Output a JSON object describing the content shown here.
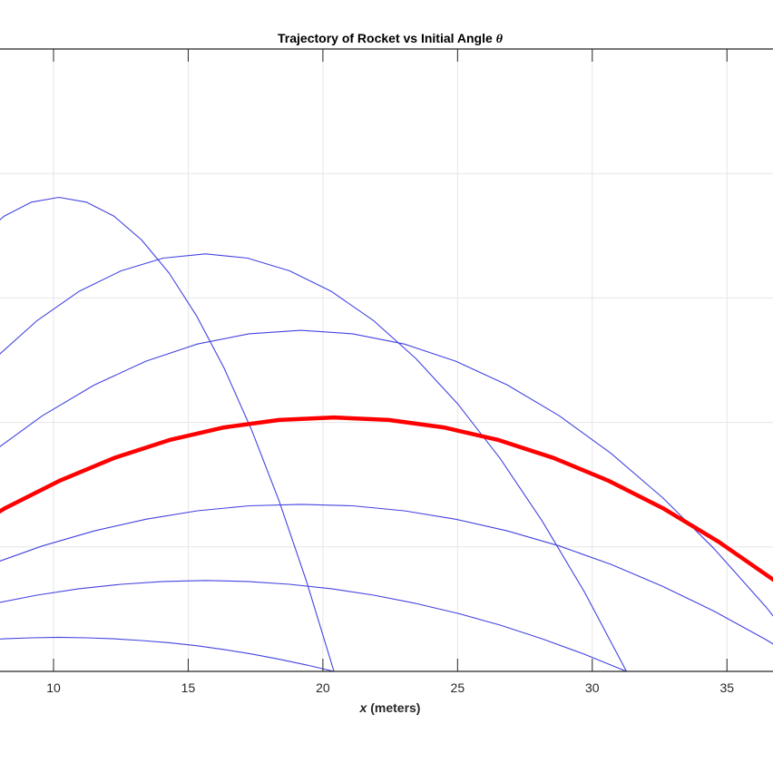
{
  "chart_data": {
    "type": "line",
    "title": "Trajectory of Rocket vs Initial Angle θ",
    "title_parts": {
      "text": "Trajectory of Rocket vs Initial Angle ",
      "symbol": "θ"
    },
    "xlabel": "x (meters)",
    "xlabel_parts": {
      "var": "x",
      "rest": " (meters)"
    },
    "xlim_visible": [
      8,
      36.7
    ],
    "ylim": [
      0,
      25
    ],
    "x_ticks": [
      10,
      15,
      20,
      25,
      30,
      35
    ],
    "x_tick_labels": [
      "10",
      "15",
      "20",
      "25",
      "30",
      "35"
    ],
    "y_grid": [
      0,
      5,
      10,
      15,
      20,
      25
    ],
    "grid": true,
    "colors": {
      "series": "#4343e0",
      "highlight": "#ff0000",
      "axis": "#262626",
      "grid": "#e6e6e6"
    },
    "series": [
      {
        "highlight": false,
        "x": [
          0,
          1.02,
          2.04,
          3.06,
          4.08,
          5.1,
          6.12,
          7.14,
          8.16,
          9.18,
          10.2,
          11.22,
          12.25,
          13.27,
          14.29,
          15.31,
          16.33,
          17.35,
          18.37,
          19.39,
          20.41
        ],
        "y": [
          0,
          0.26,
          0.49,
          0.7,
          0.88,
          1.03,
          1.15,
          1.24,
          1.31,
          1.35,
          1.37,
          1.35,
          1.31,
          1.24,
          1.15,
          1.03,
          0.88,
          0.7,
          0.49,
          0.26,
          0
        ]
      },
      {
        "highlight": false,
        "x": [
          0,
          1.56,
          3.13,
          4.69,
          6.25,
          7.82,
          9.38,
          10.94,
          12.51,
          14.07,
          15.64,
          17.2,
          18.76,
          20.32,
          21.89,
          23.45,
          25.02,
          26.58,
          28.14,
          29.71,
          31.27
        ],
        "y": [
          0,
          0.69,
          1.31,
          1.86,
          2.33,
          2.73,
          3.06,
          3.32,
          3.5,
          3.61,
          3.65,
          3.61,
          3.5,
          3.32,
          3.06,
          2.73,
          2.33,
          1.86,
          1.31,
          0.69,
          0
        ]
      },
      {
        "highlight": false,
        "x": [
          0,
          1.92,
          3.84,
          5.75,
          7.67,
          9.59,
          11.51,
          13.43,
          15.34,
          17.26,
          19.18,
          21.1,
          23.02,
          24.93,
          26.85,
          28.77,
          30.69,
          32.61,
          34.52,
          36.44,
          38.36
        ],
        "y": [
          0,
          1.28,
          2.42,
          3.42,
          4.3,
          5.04,
          5.64,
          6.11,
          6.45,
          6.65,
          6.71,
          6.65,
          6.45,
          6.11,
          5.64,
          5.04,
          4.3,
          3.42,
          2.42,
          1.28,
          0
        ]
      },
      {
        "highlight": true,
        "x": [
          0,
          2.04,
          4.08,
          6.12,
          8.16,
          10.21,
          12.25,
          14.29,
          16.33,
          18.37,
          20.41,
          22.45,
          24.49,
          26.53,
          28.57,
          30.62,
          32.66,
          34.7,
          36.74,
          38.78,
          40.82
        ],
        "y": [
          0,
          1.94,
          3.67,
          5.2,
          6.53,
          7.65,
          8.57,
          9.29,
          9.8,
          10.1,
          10.2,
          10.1,
          9.8,
          9.29,
          8.57,
          7.65,
          6.53,
          5.2,
          3.67,
          1.94,
          0
        ]
      },
      {
        "highlight": false,
        "x": [
          0,
          1.92,
          3.84,
          5.75,
          7.67,
          9.59,
          11.51,
          13.43,
          15.34,
          17.26,
          19.18,
          21.1,
          23.02,
          24.93,
          26.85,
          28.77,
          30.69,
          32.61,
          34.52,
          36.44,
          38.36
        ],
        "y": [
          0,
          2.6,
          4.93,
          6.98,
          8.76,
          10.27,
          11.5,
          12.46,
          13.15,
          13.56,
          13.7,
          13.56,
          13.15,
          12.46,
          11.5,
          10.27,
          8.76,
          6.98,
          4.93,
          2.6,
          0
        ]
      },
      {
        "highlight": false,
        "x": [
          0,
          1.56,
          3.13,
          4.69,
          6.25,
          7.82,
          9.38,
          10.94,
          12.51,
          14.07,
          15.64,
          17.2,
          18.76,
          20.32,
          21.89,
          23.45,
          25.02,
          26.58,
          28.14,
          29.71,
          31.27
        ],
        "y": [
          0,
          3.19,
          6.04,
          8.55,
          10.73,
          12.57,
          14.08,
          15.26,
          16.09,
          16.6,
          16.77,
          16.6,
          16.09,
          15.26,
          14.08,
          12.57,
          10.73,
          8.55,
          6.04,
          3.19,
          0
        ]
      },
      {
        "highlight": false,
        "x": [
          0,
          1.02,
          2.04,
          3.06,
          4.08,
          5.1,
          6.12,
          7.14,
          8.16,
          9.18,
          10.2,
          11.22,
          12.25,
          13.27,
          14.29,
          15.31,
          16.33,
          17.35,
          18.37,
          19.39,
          20.41
        ],
        "y": [
          0,
          3.62,
          6.86,
          9.71,
          12.19,
          14.28,
          16.0,
          17.33,
          18.28,
          18.85,
          19.04,
          18.85,
          18.28,
          17.33,
          16.0,
          14.28,
          12.19,
          9.71,
          6.86,
          3.62,
          0
        ]
      }
    ]
  }
}
